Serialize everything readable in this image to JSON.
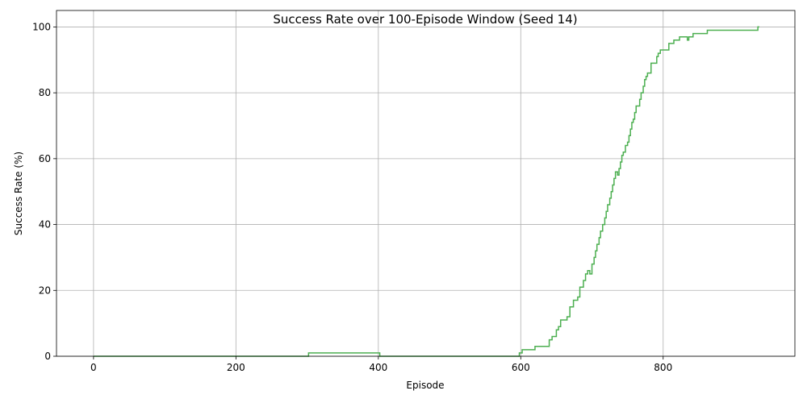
{
  "chart_data": {
    "type": "line",
    "title": "Success Rate over 100-Episode Window (Seed 14)",
    "xlabel": "Episode",
    "ylabel": "Success Rate (%)",
    "xlim": [
      -52,
      985
    ],
    "ylim": [
      0,
      105
    ],
    "xticks": [
      0,
      200,
      400,
      600,
      800
    ],
    "yticks": [
      0,
      20,
      40,
      60,
      80,
      100
    ],
    "grid": true,
    "series": [
      {
        "color": "#4caf50",
        "step": true,
        "points": [
          [
            0,
            0
          ],
          [
            302,
            0
          ],
          [
            302,
            1
          ],
          [
            402,
            1
          ],
          [
            402,
            0
          ],
          [
            598,
            0
          ],
          [
            598,
            1
          ],
          [
            602,
            1
          ],
          [
            602,
            2
          ],
          [
            620,
            2
          ],
          [
            620,
            3
          ],
          [
            640,
            3
          ],
          [
            640,
            5
          ],
          [
            644,
            5
          ],
          [
            644,
            6
          ],
          [
            650,
            6
          ],
          [
            650,
            8
          ],
          [
            653,
            8
          ],
          [
            653,
            9
          ],
          [
            656,
            9
          ],
          [
            656,
            11
          ],
          [
            665,
            11
          ],
          [
            665,
            12
          ],
          [
            669,
            12
          ],
          [
            669,
            15
          ],
          [
            674,
            15
          ],
          [
            674,
            17
          ],
          [
            680,
            17
          ],
          [
            680,
            18
          ],
          [
            683,
            18
          ],
          [
            683,
            21
          ],
          [
            688,
            21
          ],
          [
            688,
            23
          ],
          [
            691,
            23
          ],
          [
            691,
            25
          ],
          [
            694,
            25
          ],
          [
            694,
            26
          ],
          [
            697,
            26
          ],
          [
            697,
            25
          ],
          [
            700,
            25
          ],
          [
            700,
            28
          ],
          [
            703,
            28
          ],
          [
            703,
            30
          ],
          [
            705,
            30
          ],
          [
            705,
            32
          ],
          [
            707,
            32
          ],
          [
            707,
            34
          ],
          [
            710,
            34
          ],
          [
            710,
            36
          ],
          [
            712,
            36
          ],
          [
            712,
            38
          ],
          [
            715,
            38
          ],
          [
            715,
            40
          ],
          [
            718,
            40
          ],
          [
            718,
            42
          ],
          [
            720,
            42
          ],
          [
            720,
            44
          ],
          [
            722,
            44
          ],
          [
            722,
            46
          ],
          [
            725,
            46
          ],
          [
            725,
            48
          ],
          [
            727,
            48
          ],
          [
            727,
            50
          ],
          [
            729,
            50
          ],
          [
            729,
            52
          ],
          [
            731,
            52
          ],
          [
            731,
            54
          ],
          [
            733,
            54
          ],
          [
            733,
            56
          ],
          [
            736,
            56
          ],
          [
            736,
            55
          ],
          [
            738,
            55
          ],
          [
            738,
            57
          ],
          [
            740,
            57
          ],
          [
            740,
            59
          ],
          [
            742,
            59
          ],
          [
            742,
            61
          ],
          [
            744,
            61
          ],
          [
            744,
            62
          ],
          [
            747,
            62
          ],
          [
            747,
            64
          ],
          [
            750,
            64
          ],
          [
            750,
            65
          ],
          [
            752,
            65
          ],
          [
            752,
            67
          ],
          [
            754,
            67
          ],
          [
            754,
            69
          ],
          [
            756,
            69
          ],
          [
            756,
            71
          ],
          [
            758,
            71
          ],
          [
            758,
            72
          ],
          [
            760,
            72
          ],
          [
            760,
            74
          ],
          [
            762,
            74
          ],
          [
            762,
            76
          ],
          [
            767,
            76
          ],
          [
            767,
            78
          ],
          [
            769,
            78
          ],
          [
            769,
            80
          ],
          [
            772,
            80
          ],
          [
            772,
            82
          ],
          [
            774,
            82
          ],
          [
            774,
            84
          ],
          [
            776,
            84
          ],
          [
            776,
            85
          ],
          [
            778,
            85
          ],
          [
            778,
            86
          ],
          [
            783,
            86
          ],
          [
            783,
            89
          ],
          [
            791,
            89
          ],
          [
            791,
            91
          ],
          [
            793,
            91
          ],
          [
            793,
            92
          ],
          [
            796,
            92
          ],
          [
            796,
            93
          ],
          [
            808,
            93
          ],
          [
            808,
            95
          ],
          [
            815,
            95
          ],
          [
            815,
            96
          ],
          [
            823,
            96
          ],
          [
            823,
            97
          ],
          [
            834,
            97
          ],
          [
            834,
            96
          ],
          [
            836,
            96
          ],
          [
            836,
            97
          ],
          [
            842,
            97
          ],
          [
            842,
            98
          ],
          [
            862,
            98
          ],
          [
            862,
            99
          ],
          [
            933,
            99
          ],
          [
            933,
            100
          ],
          [
            935,
            100
          ]
        ]
      }
    ]
  }
}
